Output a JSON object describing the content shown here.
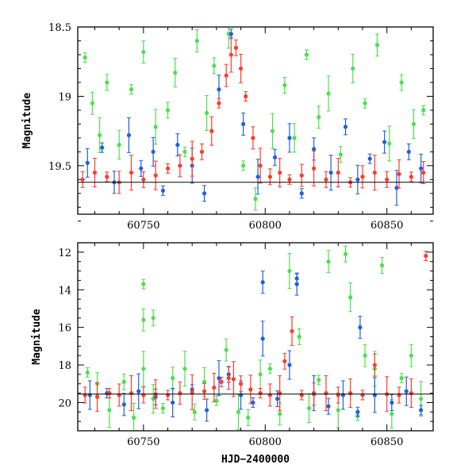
{
  "chart_data": [
    {
      "type": "scatter",
      "panel": "top",
      "title": "",
      "xlabel": "",
      "ylabel": "Magnitude",
      "xlim": [
        60723,
        60869
      ],
      "ylim": [
        19.85,
        18.5
      ],
      "y_inverted": true,
      "xticks": [
        60750,
        60800,
        60850
      ],
      "xtick_labels": [
        "60750",
        "60800",
        "60850"
      ],
      "yticks": [
        18.5,
        19,
        19.5
      ],
      "ytick_labels": [
        "18.5",
        "19",
        "19.5"
      ],
      "hline": 19.62,
      "colors": {
        "blue": "#1f5fe0",
        "green": "#4ddf4d",
        "red": "#ff3a2a"
      },
      "series": [
        {
          "color_key": "green",
          "x": [
            60726,
            60729,
            60732,
            60735,
            60740,
            60745,
            60750,
            60755,
            60760,
            60763,
            60767,
            60772,
            60776,
            60779,
            60785,
            60791,
            60796,
            60803,
            60808,
            60812,
            60817,
            60822,
            60826,
            60831,
            60836,
            60841,
            60846,
            60851,
            60856,
            60861,
            60865
          ],
          "y": [
            18.72,
            19.05,
            19.28,
            18.9,
            19.35,
            18.95,
            18.68,
            19.22,
            19.1,
            18.83,
            19.4,
            18.6,
            19.12,
            18.78,
            18.55,
            19.5,
            19.74,
            19.25,
            18.92,
            19.3,
            18.7,
            19.15,
            18.98,
            19.42,
            18.8,
            19.05,
            18.63,
            19.34,
            18.9,
            19.2,
            19.1
          ]
        },
        {
          "color_key": "blue",
          "x": [
            60727,
            60733,
            60738,
            60744,
            60749,
            60754,
            60758,
            60764,
            60770,
            60775,
            60781,
            60786,
            60791,
            60797,
            60804,
            60810,
            60815,
            60820,
            60827,
            60833,
            60838,
            60843,
            60849,
            60854,
            60859,
            60864
          ],
          "y": [
            19.48,
            19.37,
            19.62,
            19.28,
            19.52,
            19.4,
            19.68,
            19.35,
            19.5,
            19.7,
            18.95,
            18.55,
            19.2,
            19.58,
            19.44,
            19.3,
            19.7,
            19.38,
            19.55,
            19.22,
            19.6,
            19.45,
            19.33,
            19.66,
            19.4,
            19.52
          ]
        },
        {
          "color_key": "red",
          "x": [
            60725,
            60730,
            60735,
            60740,
            60745,
            60750,
            60755,
            60760,
            60765,
            60770,
            60774,
            60778,
            60781,
            60784,
            60786,
            60788,
            60790,
            60792,
            60795,
            60798,
            60802,
            60806,
            60810,
            60815,
            60820,
            60825,
            60830,
            60835,
            60840,
            60845,
            60850,
            60855,
            60860,
            60865
          ],
          "y": [
            19.6,
            19.55,
            19.58,
            19.62,
            19.55,
            19.6,
            19.57,
            19.52,
            19.5,
            19.45,
            19.4,
            19.25,
            19.05,
            18.85,
            18.7,
            18.65,
            18.8,
            19.0,
            19.3,
            19.5,
            19.58,
            19.55,
            19.6,
            19.57,
            19.52,
            19.6,
            19.55,
            19.62,
            19.58,
            19.55,
            19.6,
            19.56,
            19.58,
            19.55
          ]
        }
      ]
    },
    {
      "type": "scatter",
      "panel": "bottom",
      "title": "",
      "xlabel": "HJD−2400000",
      "ylabel": "Magnitude",
      "xlim": [
        60723,
        60869
      ],
      "ylim": [
        21.5,
        11.5
      ],
      "y_inverted": true,
      "xticks": [
        60750,
        60800,
        60850
      ],
      "xtick_labels": [
        "60750",
        "60800",
        "60850"
      ],
      "yticks": [
        12,
        14,
        16,
        18,
        20
      ],
      "ytick_labels": [
        "12",
        "14",
        "16",
        "18",
        "20"
      ],
      "hline": 19.55,
      "colors": {
        "blue": "#1f5fe0",
        "green": "#4ddf4d",
        "red": "#ff3a2a"
      },
      "series": [
        {
          "color_key": "green",
          "x": [
            60727,
            60731,
            60736,
            60742,
            60746,
            60750,
            60750,
            60750,
            60754,
            60754,
            60758,
            60762,
            60767,
            60771,
            60775,
            60780,
            60784,
            60789,
            60793,
            60798,
            60802,
            60806,
            60810,
            60814,
            60818,
            60822,
            60826,
            60830,
            60833,
            60835,
            60838,
            60841,
            60845,
            60848,
            60852,
            60856,
            60860,
            60864
          ],
          "y": [
            18.4,
            19.0,
            20.4,
            18.9,
            20.8,
            13.7,
            15.6,
            18.2,
            15.5,
            19.8,
            20.3,
            18.7,
            18.2,
            20.5,
            18.9,
            19.9,
            17.2,
            20.5,
            20.8,
            18.5,
            18.2,
            20.6,
            13.0,
            16.5,
            20.3,
            18.8,
            12.5,
            20.4,
            12.1,
            14.4,
            20.7,
            17.5,
            18.2,
            12.7,
            20.6,
            18.7,
            17.5,
            19.8
          ]
        },
        {
          "color_key": "blue",
          "x": [
            60728,
            60735,
            60742,
            60748,
            60755,
            60762,
            60770,
            60776,
            60781,
            60785,
            60790,
            60795,
            60799,
            60799,
            60805,
            60810,
            60813,
            60813,
            60820,
            60826,
            60832,
            60838,
            60839,
            60845,
            60852,
            60858,
            60864
          ],
          "y": [
            19.6,
            19.5,
            20.1,
            19.4,
            19.7,
            20.0,
            19.3,
            20.4,
            18.7,
            18.5,
            19.6,
            20.0,
            13.6,
            16.6,
            19.8,
            18.0,
            13.4,
            13.7,
            19.5,
            20.2,
            19.6,
            20.5,
            16.0,
            19.6,
            20.0,
            19.4,
            20.4
          ]
        },
        {
          "color_key": "red",
          "x": [
            60726,
            60731,
            60736,
            60740,
            60745,
            60750,
            60755,
            60760,
            60765,
            60770,
            60775,
            60779,
            60782,
            60785,
            60787,
            60790,
            60794,
            60798,
            60802,
            60806,
            60808,
            60811,
            60815,
            60820,
            60825,
            60830,
            60835,
            60840,
            60845,
            60850,
            60855,
            60860,
            60866
          ],
          "y": [
            19.6,
            19.7,
            19.5,
            19.6,
            19.5,
            19.6,
            19.55,
            19.6,
            19.5,
            19.45,
            19.4,
            19.2,
            18.9,
            18.7,
            18.75,
            19.0,
            19.3,
            19.5,
            19.6,
            19.5,
            17.8,
            16.2,
            19.6,
            19.55,
            19.5,
            19.6,
            19.5,
            19.6,
            18.0,
            19.55,
            19.6,
            19.5,
            12.2
          ]
        }
      ]
    }
  ]
}
